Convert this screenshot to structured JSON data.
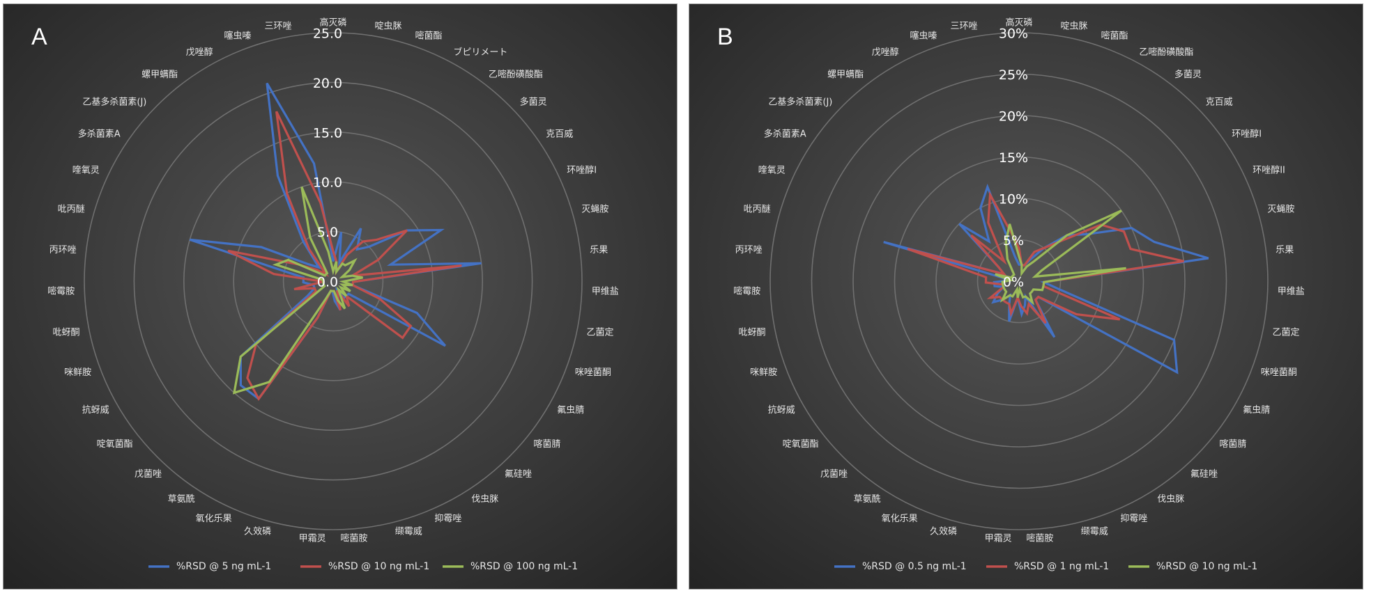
{
  "chart_data": [
    {
      "panel_label": "A",
      "type": "radar",
      "categories": [
        "高灭磷",
        "啶虫脒",
        "嘧菌酯",
        "ブピリメート",
        "乙嘧酚磺酸酯",
        "多菌灵",
        "克百威",
        "环唑醇I",
        "灭蝇胺",
        "乐果",
        "甲维盐",
        "乙菌定",
        "咪唑菌酮",
        "氟虫腈",
        "喀菌腈",
        "氟硅唑",
        "伐虫脒",
        "抑霉唑",
        "缬霉威",
        "嘧菌胺",
        "甲霜灵",
        "久效磷",
        "氧化乐果",
        "草氨酰",
        "戊菌唑",
        "啶氧菌酯",
        "抗蚜威",
        "咪鲜胺",
        "吡蚜酮",
        "嘧霉胺",
        "丙环唑",
        "吡丙醚",
        "喹氧灵",
        "多杀菌素A",
        "乙基多杀菌素(J)",
        "螺甲螨酯",
        "戊唑醇",
        "噻虫嗪",
        "三环唑"
      ],
      "rlim": [
        0,
        25
      ],
      "ticks": [
        "0.0",
        "5.0",
        "10.0",
        "15.0",
        "20.0",
        "25.0"
      ],
      "tick_values": [
        0,
        5,
        10,
        15,
        20,
        25
      ],
      "grid": true,
      "legend_position": "bottom",
      "series": [
        {
          "name": "%RSD @ 5 ng mL-1",
          "color": "#4472c4",
          "values": [
            2,
            5,
            2,
            6,
            4,
            5,
            9,
            12,
            6,
            15,
            2,
            2,
            9,
            13,
            2,
            2,
            2,
            1,
            3,
            2,
            1,
            1,
            4,
            14,
            14,
            12,
            3,
            2,
            2,
            3,
            3,
            15,
            8,
            3,
            2,
            5,
            12,
            21,
            12
          ]
        },
        {
          "name": "%RSD @ 10 ng mL-1",
          "color": "#c0504d",
          "values": [
            3,
            2,
            1,
            3,
            5,
            6,
            9,
            5,
            2,
            13,
            2,
            2,
            5,
            9,
            9,
            2,
            3,
            1,
            3,
            1,
            1,
            1,
            4,
            14,
            13,
            10,
            2,
            2,
            4,
            1,
            6,
            11,
            4,
            2,
            1,
            4,
            10,
            18,
            8
          ]
        },
        {
          "name": "%RSD  @ 100 ng mL-1",
          "color": "#9bbb59",
          "values": [
            1,
            2,
            1,
            2,
            2,
            3,
            2,
            1,
            2,
            3,
            1,
            2,
            1,
            2,
            1,
            2,
            1,
            3,
            2,
            1,
            1,
            1,
            2,
            12,
            15,
            12,
            1,
            1,
            1,
            1,
            1,
            6,
            5,
            1,
            1,
            1,
            5,
            10,
            3
          ]
        }
      ]
    },
    {
      "panel_label": "B",
      "type": "radar",
      "categories": [
        "高灭磷",
        "啶虫脒",
        "嘧菌酯",
        "乙嘧酚磺酸酯",
        "多菌灵",
        "克百威",
        "环唑醇I",
        "环唑醇II",
        "灭蝇胺",
        "乐果",
        "甲维盐",
        "乙菌定",
        "咪唑菌酮",
        "氟虫腈",
        "喀菌腈",
        "氟硅唑",
        "伐虫脒",
        "抑霉唑",
        "缬霉威",
        "嘧菌胺",
        "甲霜灵",
        "久效磷",
        "氧化乐果",
        "草氨酰",
        "戊菌唑",
        "啶氧菌酯",
        "抗蚜威",
        "咪鲜胺",
        "吡蚜酮",
        "嘧霉胺",
        "丙环唑",
        "吡丙醚",
        "喹氧灵",
        "多杀菌素A",
        "乙基多杀菌素(J)",
        "螺甲螨酯",
        "戊唑醇",
        "噻虫嗪",
        "三环唑"
      ],
      "rlim": [
        0,
        30
      ],
      "ticks": [
        "0%",
        "5%",
        "10%",
        "15%",
        "20%",
        "25%",
        "30%"
      ],
      "tick_values": [
        0,
        5,
        10,
        15,
        20,
        25,
        30
      ],
      "grid": true,
      "legend_position": "bottom",
      "series": [
        {
          "name": "%RSD @ 0.5 ng mL-1",
          "color": "#4472c4",
          "values": [
            2,
            2,
            2,
            3,
            5,
            8,
            10,
            15,
            17,
            23,
            3,
            5,
            20,
            22,
            3,
            3,
            8,
            2,
            3,
            4,
            2,
            5,
            3,
            2,
            3,
            4,
            3,
            2,
            3,
            3,
            1,
            17,
            2,
            3,
            10,
            6,
            10,
            12,
            3
          ]
        },
        {
          "name": "%RSD @ 1 ng mL-1",
          "color": "#c0504d",
          "values": [
            4,
            2,
            2,
            4,
            5,
            7,
            12,
            14,
            14,
            20,
            3,
            3,
            13,
            8,
            3,
            3,
            6,
            3,
            4,
            3,
            2,
            4,
            3,
            3,
            3,
            3,
            4,
            2,
            2,
            4,
            4,
            14,
            2,
            3,
            8,
            3,
            8,
            11,
            6
          ]
        },
        {
          "name": "%RSD  @ 10 ng mL-1",
          "color": "#9bbb59",
          "values": [
            3,
            2,
            1,
            2,
            3,
            8,
            15,
            3,
            2,
            13,
            3,
            3,
            3,
            2,
            2,
            2,
            3,
            2,
            2,
            1,
            2,
            1,
            2,
            2,
            3,
            2,
            2,
            2,
            2,
            2,
            1,
            3,
            1,
            1,
            1,
            1,
            3,
            5,
            7
          ]
        }
      ]
    }
  ]
}
